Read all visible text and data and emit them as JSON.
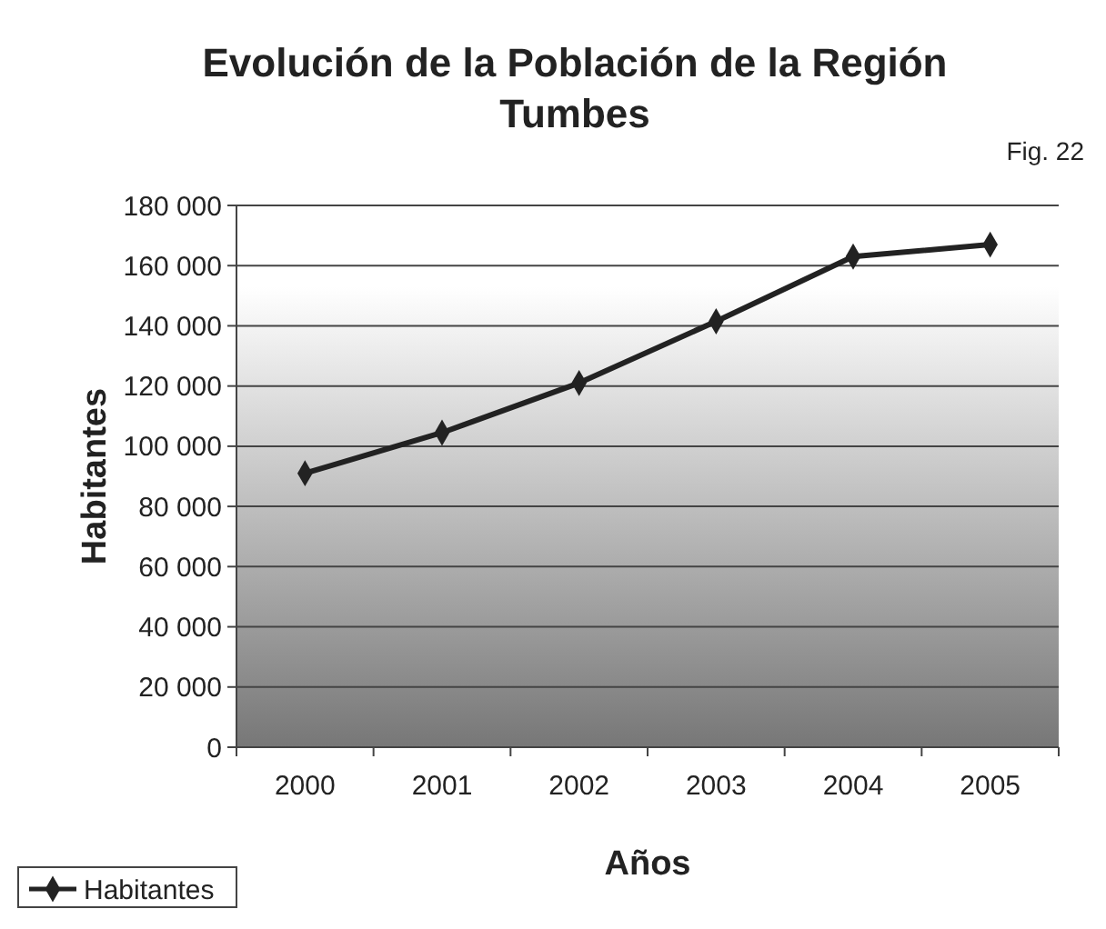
{
  "chart_data": {
    "type": "line",
    "title": "Evolución de la Población de la Región Tumbes",
    "xlabel": "Años",
    "ylabel": "Habitantes",
    "annotations": [
      "Fig. 22"
    ],
    "categories": [
      "2000",
      "2001",
      "2002",
      "2003",
      "2004",
      "2005"
    ],
    "series": [
      {
        "name": "Habitantes",
        "color": "#222222",
        "values": [
          91000,
          104500,
          121000,
          141500,
          163000,
          167000
        ]
      }
    ],
    "ylim": [
      0,
      180000
    ],
    "yticks": [
      {
        "value": 0,
        "label": "0"
      },
      {
        "value": 20000,
        "label": "20 000"
      },
      {
        "value": 40000,
        "label": "40 000"
      },
      {
        "value": 60000,
        "label": "60 000"
      },
      {
        "value": 80000,
        "label": "80 000"
      },
      {
        "value": 100000,
        "label": "100 000"
      },
      {
        "value": 120000,
        "label": "120 000"
      },
      {
        "value": 140000,
        "label": "140 000"
      },
      {
        "value": 160000,
        "label": "160 000"
      },
      {
        "value": 180000,
        "label": "180 000"
      }
    ],
    "grid": "y",
    "legend": "bottom left",
    "marker": "diamond",
    "line_style": "solid"
  }
}
